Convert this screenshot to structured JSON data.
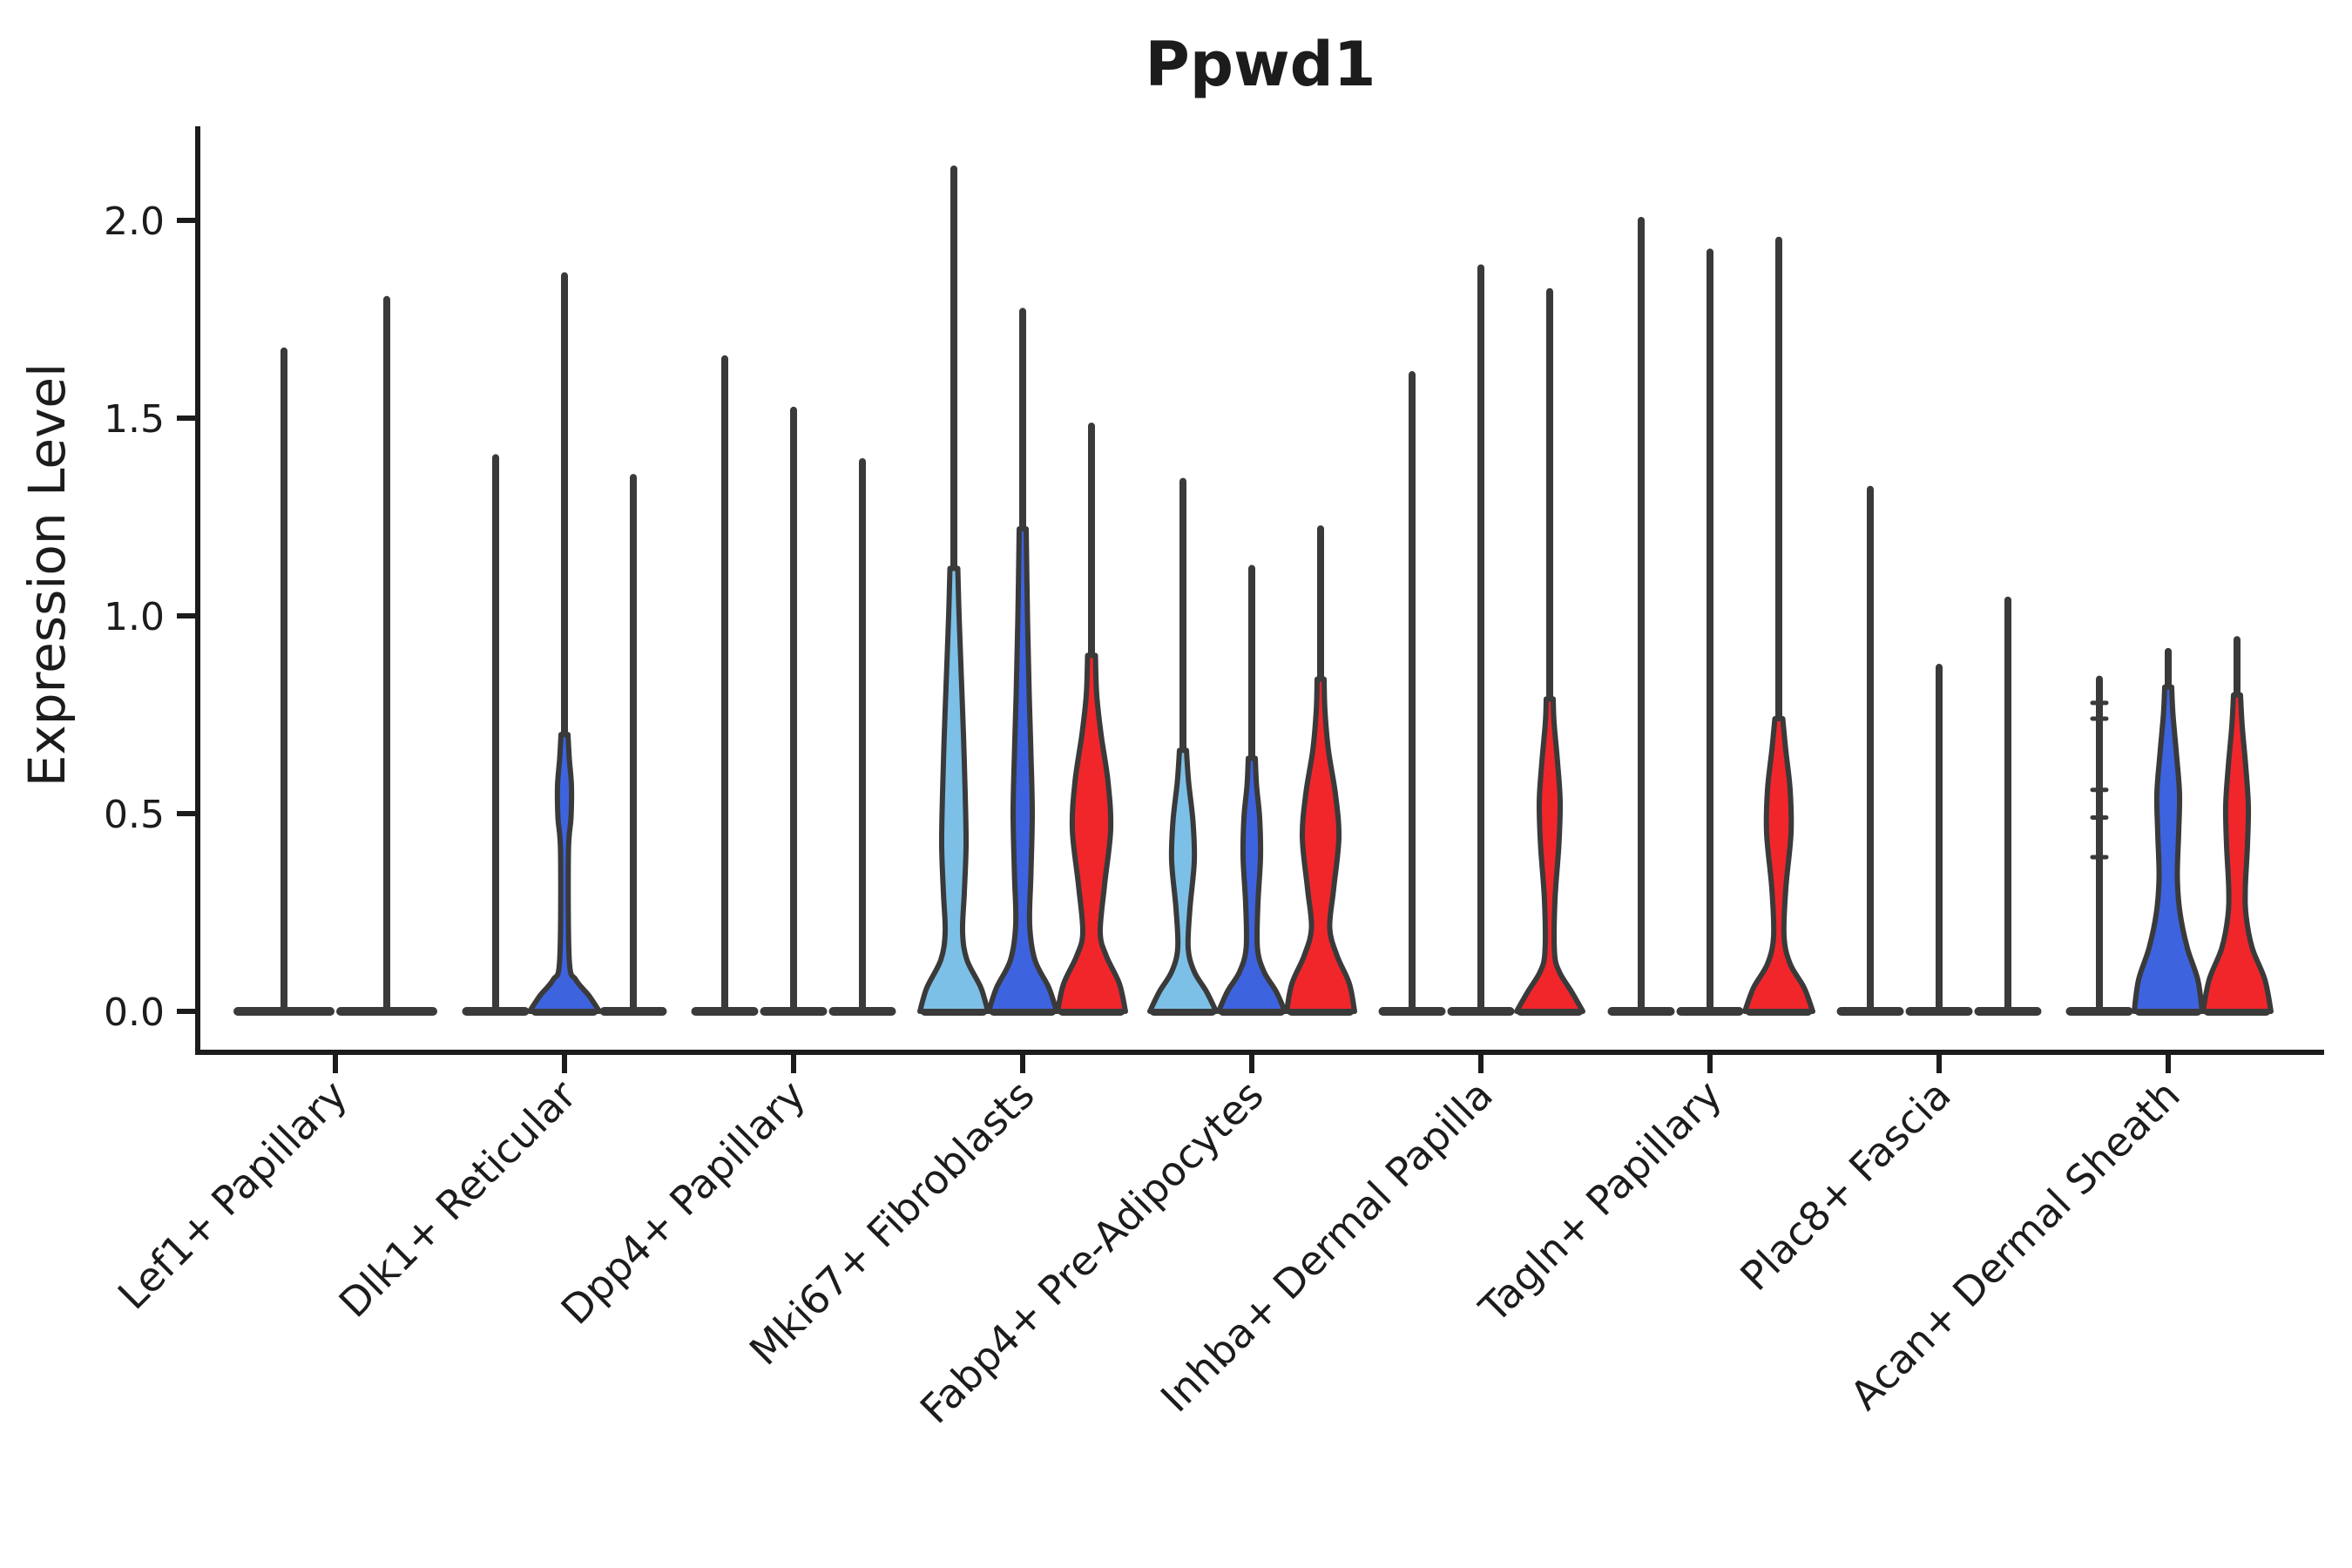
{
  "chart_data": {
    "type": "violin",
    "title": "Ppwd1",
    "ylabel": "Expression Level",
    "xlabel": "",
    "grid": false,
    "legend": "none",
    "y_axis": {
      "ticks": [
        0.0,
        0.5,
        1.0,
        1.5,
        2.0
      ],
      "tick_labels": [
        "0.0",
        "0.5",
        "1.0",
        "1.5",
        "2.0"
      ],
      "ylim": [
        -0.1,
        2.24
      ]
    },
    "colors": {
      "light_blue": "#7CC0E8",
      "blue": "#3D63DF",
      "red": "#F0262B",
      "outline": "#3A3A3A",
      "axis": "#1c1c1c"
    },
    "categories": [
      "Lef1+ Papillary",
      "Dlk1+ Reticular",
      "Dpp4+ Papillary",
      "Mki67+ Fibroblasts",
      "Fabp4+ Pre-Adipocytes",
      "Inhba+ Dermal Papilla",
      "Tagln+ Papillary",
      "Plac8+ Fascia",
      "Acan+ Dermal Sheath"
    ],
    "groups": [
      {
        "category": "Lef1+ Papillary",
        "violins": [
          {
            "x_offset": -59,
            "width": 118,
            "max": 1.67,
            "shape": "line",
            "color": null
          },
          {
            "x_offset": 59,
            "width": 118,
            "max": 1.8,
            "shape": "line",
            "color": null
          }
        ]
      },
      {
        "category": "Dlk1+ Reticular",
        "violins": [
          {
            "x_offset": -79,
            "width": 79,
            "max": 1.4,
            "shape": "line",
            "color": null
          },
          {
            "x_offset": 0,
            "width": 79,
            "max": 1.86,
            "shape": "body",
            "color": "blue",
            "profile": [
              [
                0,
                40
              ],
              [
                0.04,
                28
              ],
              [
                0.08,
                13
              ],
              [
                0.13,
                5.5
              ],
              [
                0.4,
                4.5
              ],
              [
                0.49,
                7.5
              ],
              [
                0.57,
                8
              ],
              [
                0.64,
                5.5
              ],
              [
                0.7,
                4
              ]
            ]
          },
          {
            "x_offset": 79,
            "width": 79,
            "max": 1.35,
            "shape": "line",
            "color": null
          }
        ]
      },
      {
        "category": "Dpp4+ Papillary",
        "violins": [
          {
            "x_offset": -79,
            "width": 79,
            "max": 1.65,
            "shape": "line",
            "color": null
          },
          {
            "x_offset": 0,
            "width": 79,
            "max": 1.52,
            "shape": "line",
            "color": null
          },
          {
            "x_offset": 79,
            "width": 79,
            "max": 1.39,
            "shape": "line",
            "color": null
          }
        ]
      },
      {
        "category": "Mki67+ Fibroblasts",
        "violins": [
          {
            "x_offset": -79,
            "width": 79,
            "max": 2.13,
            "shape": "body",
            "color": "light_blue",
            "profile": [
              [
                0,
                39
              ],
              [
                0.06,
                31
              ],
              [
                0.13,
                15
              ],
              [
                0.2,
                10
              ],
              [
                0.3,
                12
              ],
              [
                0.42,
                14
              ],
              [
                0.55,
                13
              ],
              [
                0.7,
                11
              ],
              [
                0.85,
                8.5
              ],
              [
                1.0,
                6
              ],
              [
                1.12,
                4.5
              ]
            ]
          },
          {
            "x_offset": 0,
            "width": 79,
            "max": 1.77,
            "shape": "body",
            "color": "blue",
            "profile": [
              [
                0,
                39
              ],
              [
                0.06,
                30
              ],
              [
                0.13,
                14
              ],
              [
                0.22,
                8
              ],
              [
                0.35,
                9.5
              ],
              [
                0.5,
                11
              ],
              [
                0.65,
                9.5
              ],
              [
                0.8,
                7.5
              ],
              [
                1.0,
                5.5
              ],
              [
                1.22,
                4
              ]
            ]
          },
          {
            "x_offset": 79,
            "width": 79,
            "max": 1.48,
            "shape": "body",
            "color": "red",
            "profile": [
              [
                0,
                39
              ],
              [
                0.07,
                32
              ],
              [
                0.14,
                17
              ],
              [
                0.2,
                10
              ],
              [
                0.32,
                15
              ],
              [
                0.46,
                22
              ],
              [
                0.58,
                19
              ],
              [
                0.7,
                11
              ],
              [
                0.8,
                6
              ],
              [
                0.9,
                4.5
              ]
            ]
          }
        ]
      },
      {
        "category": "Fabp4+ Pre-Adipocytes",
        "violins": [
          {
            "x_offset": -79,
            "width": 79,
            "max": 1.34,
            "shape": "body",
            "color": "light_blue",
            "profile": [
              [
                0,
                38
              ],
              [
                0.05,
                27
              ],
              [
                0.1,
                13
              ],
              [
                0.16,
                6
              ],
              [
                0.26,
                8
              ],
              [
                0.38,
                13
              ],
              [
                0.48,
                11.5
              ],
              [
                0.58,
                6.5
              ],
              [
                0.66,
                4
              ]
            ]
          },
          {
            "x_offset": 0,
            "width": 79,
            "max": 1.12,
            "shape": "body",
            "color": "blue",
            "profile": [
              [
                0,
                38
              ],
              [
                0.05,
                28
              ],
              [
                0.1,
                14
              ],
              [
                0.16,
                6.5
              ],
              [
                0.27,
                7
              ],
              [
                0.39,
                10
              ],
              [
                0.49,
                9
              ],
              [
                0.57,
                5.5
              ],
              [
                0.64,
                4
              ]
            ]
          },
          {
            "x_offset": 79,
            "width": 79,
            "max": 1.22,
            "shape": "body",
            "color": "red",
            "profile": [
              [
                0,
                39
              ],
              [
                0.07,
                33
              ],
              [
                0.14,
                19
              ],
              [
                0.21,
                10.5
              ],
              [
                0.31,
                15
              ],
              [
                0.44,
                21
              ],
              [
                0.55,
                17
              ],
              [
                0.66,
                9
              ],
              [
                0.76,
                5
              ],
              [
                0.84,
                4
              ]
            ]
          }
        ]
      },
      {
        "category": "Inhba+ Dermal Papilla",
        "violins": [
          {
            "x_offset": -79,
            "width": 79,
            "max": 1.61,
            "shape": "line",
            "color": null
          },
          {
            "x_offset": 0,
            "width": 79,
            "max": 1.88,
            "shape": "line",
            "color": null
          },
          {
            "x_offset": 79,
            "width": 79,
            "max": 1.82,
            "shape": "body",
            "color": "red",
            "profile": [
              [
                0,
                38
              ],
              [
                0.05,
                25
              ],
              [
                0.1,
                11
              ],
              [
                0.15,
                5.5
              ],
              [
                0.28,
                6
              ],
              [
                0.42,
                10.5
              ],
              [
                0.53,
                12
              ],
              [
                0.63,
                9
              ],
              [
                0.73,
                5
              ],
              [
                0.79,
                4
              ]
            ]
          }
        ]
      },
      {
        "category": "Tagln+ Papillary",
        "violins": [
          {
            "x_offset": -79,
            "width": 79,
            "max": 2.0,
            "shape": "line",
            "color": null
          },
          {
            "x_offset": 0,
            "width": 79,
            "max": 1.92,
            "shape": "line",
            "color": null
          },
          {
            "x_offset": 79,
            "width": 79,
            "max": 1.95,
            "shape": "body",
            "color": "red",
            "profile": [
              [
                0,
                39
              ],
              [
                0.06,
                29
              ],
              [
                0.12,
                13
              ],
              [
                0.19,
                6
              ],
              [
                0.31,
                8
              ],
              [
                0.45,
                14
              ],
              [
                0.56,
                13
              ],
              [
                0.66,
                8
              ],
              [
                0.74,
                4.5
              ]
            ]
          }
        ]
      },
      {
        "category": "Plac8+ Fascia",
        "violins": [
          {
            "x_offset": -79,
            "width": 79,
            "max": 1.32,
            "shape": "line",
            "color": null
          },
          {
            "x_offset": 0,
            "width": 79,
            "max": 0.87,
            "shape": "line",
            "color": null
          },
          {
            "x_offset": 79,
            "width": 79,
            "max": 1.04,
            "shape": "line",
            "color": null
          }
        ]
      },
      {
        "category": "Acan+ Dermal Sheath",
        "violins": [
          {
            "x_offset": -79,
            "width": 79,
            "max": 0.84,
            "shape": "line",
            "color": null,
            "marks": [
              0.78,
              0.74,
              0.56,
              0.49,
              0.39
            ]
          },
          {
            "x_offset": 0,
            "width": 79,
            "max": 0.91,
            "shape": "body",
            "color": "blue",
            "profile": [
              [
                0,
                39
              ],
              [
                0.08,
                34
              ],
              [
                0.16,
                22
              ],
              [
                0.25,
                13.5
              ],
              [
                0.34,
                10.5
              ],
              [
                0.45,
                12
              ],
              [
                0.55,
                13
              ],
              [
                0.65,
                9.5
              ],
              [
                0.75,
                5.5
              ],
              [
                0.82,
                4
              ]
            ]
          },
          {
            "x_offset": 79,
            "width": 79,
            "max": 0.94,
            "shape": "body",
            "color": "red",
            "profile": [
              [
                0,
                39
              ],
              [
                0.08,
                32
              ],
              [
                0.16,
                17.5
              ],
              [
                0.24,
                10.5
              ],
              [
                0.31,
                9.5
              ],
              [
                0.42,
                12
              ],
              [
                0.52,
                13
              ],
              [
                0.62,
                10
              ],
              [
                0.72,
                6
              ],
              [
                0.8,
                4
              ]
            ]
          }
        ]
      }
    ]
  }
}
